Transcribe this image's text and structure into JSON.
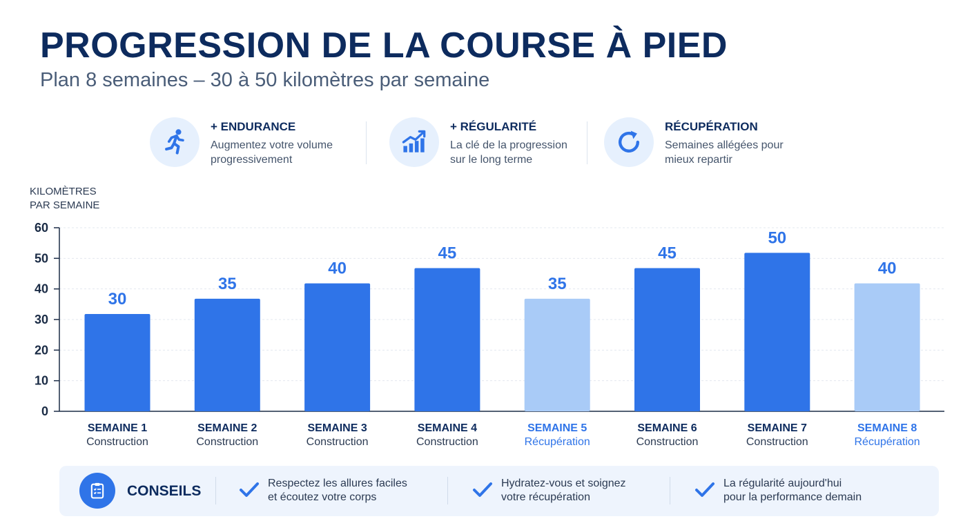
{
  "header": {
    "title": "PROGRESSION DE LA COURSE À PIED",
    "subtitle": "Plan 8 semaines – 30 à 50 kilomètres par semaine"
  },
  "features": [
    {
      "icon": "runner-icon",
      "title": "+ ENDURANCE",
      "line1": "Augmentez votre volume",
      "line2": "progressivement"
    },
    {
      "icon": "growth-chart-icon",
      "title": "+ RÉGULARITÉ",
      "line1": "La clé de la progression",
      "line2": "sur le long terme"
    },
    {
      "icon": "refresh-icon",
      "title": "RÉCUPÉRATION",
      "line1": "Semaines allégées pour",
      "line2": "mieux repartir"
    }
  ],
  "axis": {
    "ylabel_line1": "KILOMÈTRES",
    "ylabel_line2": "PAR SEMAINE"
  },
  "colors": {
    "construction": "#2f74e8",
    "recuperation": "#a9cbf7",
    "label_construction": "#2f74e8",
    "label_recuperation": "#2f74e8"
  },
  "chart_data": {
    "type": "bar",
    "ylim": [
      0,
      60
    ],
    "yticks": [
      0,
      10,
      20,
      30,
      40,
      50,
      60
    ],
    "grid": true,
    "categories": [
      "SEMAINE 1",
      "SEMAINE 2",
      "SEMAINE 3",
      "SEMAINE 4",
      "SEMAINE 5",
      "SEMAINE 6",
      "SEMAINE 7",
      "SEMAINE 8"
    ],
    "phases": [
      "Construction",
      "Construction",
      "Construction",
      "Construction",
      "Récupération",
      "Construction",
      "Construction",
      "Récupération"
    ],
    "values": [
      30,
      35,
      40,
      45,
      35,
      45,
      50,
      40
    ]
  },
  "tips": {
    "label": "CONSEILS",
    "icon": "clipboard-icon",
    "items": [
      {
        "line1": "Respectez les allures faciles",
        "line2": "et écoutez votre corps"
      },
      {
        "line1": "Hydratez-vous et soignez",
        "line2": "votre récupération"
      },
      {
        "line1": "La régularité aujourd'hui",
        "line2": "pour la performance demain"
      }
    ]
  }
}
